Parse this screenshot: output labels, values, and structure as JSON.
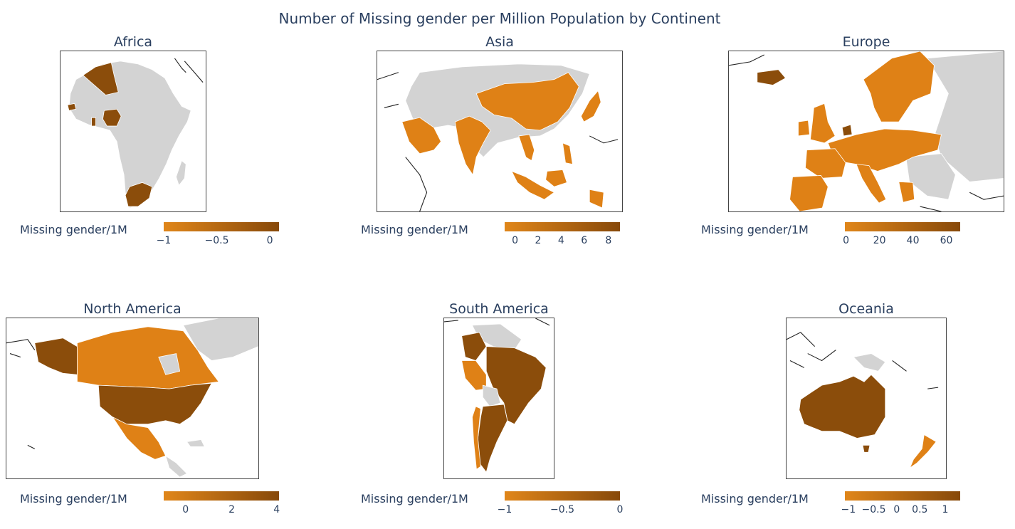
{
  "title": "Number of Missing gender per Million Population by Continent",
  "colors": {
    "low": "#e0861a",
    "high": "#87490a",
    "no_data": "#d3d3d3"
  },
  "panels": [
    {
      "name": "Africa",
      "colorbar": {
        "label": "Missing gender/1M",
        "ticks": [
          "−1",
          "−0.5",
          "0"
        ]
      }
    },
    {
      "name": "Asia",
      "colorbar": {
        "label": "Missing gender/1M",
        "ticks": [
          "0",
          "2",
          "4",
          "6",
          "8"
        ]
      }
    },
    {
      "name": "Europe",
      "colorbar": {
        "label": "Missing gender/1M",
        "ticks": [
          "0",
          "20",
          "40",
          "60"
        ]
      }
    },
    {
      "name": "North America",
      "colorbar": {
        "label": "Missing gender/1M",
        "ticks": [
          "0",
          "2",
          "4"
        ]
      }
    },
    {
      "name": "South America",
      "colorbar": {
        "label": "Missing gender/1M",
        "ticks": [
          "−1",
          "−0.5",
          "0"
        ]
      }
    },
    {
      "name": "Oceania",
      "colorbar": {
        "label": "Missing gender/1M",
        "ticks": [
          "−1",
          "−0.5",
          "0",
          "0.5",
          "1"
        ]
      }
    }
  ]
}
